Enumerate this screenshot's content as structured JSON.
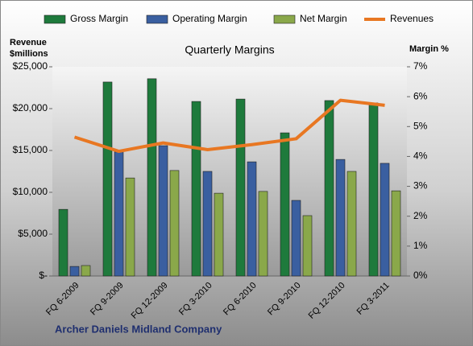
{
  "chart_data": {
    "type": "bar",
    "title": "Quarterly Margins",
    "y_label": "Revenue $millions",
    "y2_label": "Margin %",
    "footer": "Archer Daniels Midland Company",
    "categories": [
      "FQ 6-2009",
      "FQ 9-2009",
      "FQ 12-2009",
      "FQ 3-2010",
      "FQ 6-2010",
      "FQ 9-2010",
      "FQ 12-2010",
      "FQ 3-2011"
    ],
    "series": [
      {
        "name": "Gross Margin",
        "color": "#1e7a3c",
        "axis": "y2",
        "values": [
          2.23,
          6.49,
          6.6,
          5.84,
          5.92,
          4.79,
          5.87,
          5.79
        ]
      },
      {
        "name": "Operating Margin",
        "color": "#3a5fa0",
        "axis": "y2",
        "values": [
          0.32,
          4.15,
          4.36,
          3.5,
          3.82,
          2.53,
          3.9,
          3.77
        ]
      },
      {
        "name": "Net Margin",
        "color": "#8aa84a",
        "axis": "y2",
        "values": [
          0.35,
          3.28,
          3.53,
          2.77,
          2.83,
          2.02,
          3.5,
          2.85
        ]
      },
      {
        "name": "Revenues",
        "color": "#e87722",
        "type": "line",
        "values": [
          16600,
          14900,
          15900,
          15100,
          15700,
          16400,
          21000,
          20400
        ]
      }
    ],
    "ylim": [
      0,
      25000
    ],
    "yticks": [
      {
        "value": 0,
        "label": "$-"
      },
      {
        "value": 5000,
        "label": "$5,000"
      },
      {
        "value": 10000,
        "label": "$10,000"
      },
      {
        "value": 15000,
        "label": "$15,000"
      },
      {
        "value": 20000,
        "label": "$20,000"
      },
      {
        "value": 25000,
        "label": "$25,000"
      }
    ],
    "y2lim": [
      0,
      7
    ],
    "y2ticks": [
      {
        "value": 0,
        "label": "0%"
      },
      {
        "value": 1,
        "label": "1%"
      },
      {
        "value": 2,
        "label": "2%"
      },
      {
        "value": 3,
        "label": "3%"
      },
      {
        "value": 4,
        "label": "4%"
      },
      {
        "value": 5,
        "label": "5%"
      },
      {
        "value": 6,
        "label": "6%"
      },
      {
        "value": 7,
        "label": "7%"
      }
    ],
    "legend": "top"
  }
}
